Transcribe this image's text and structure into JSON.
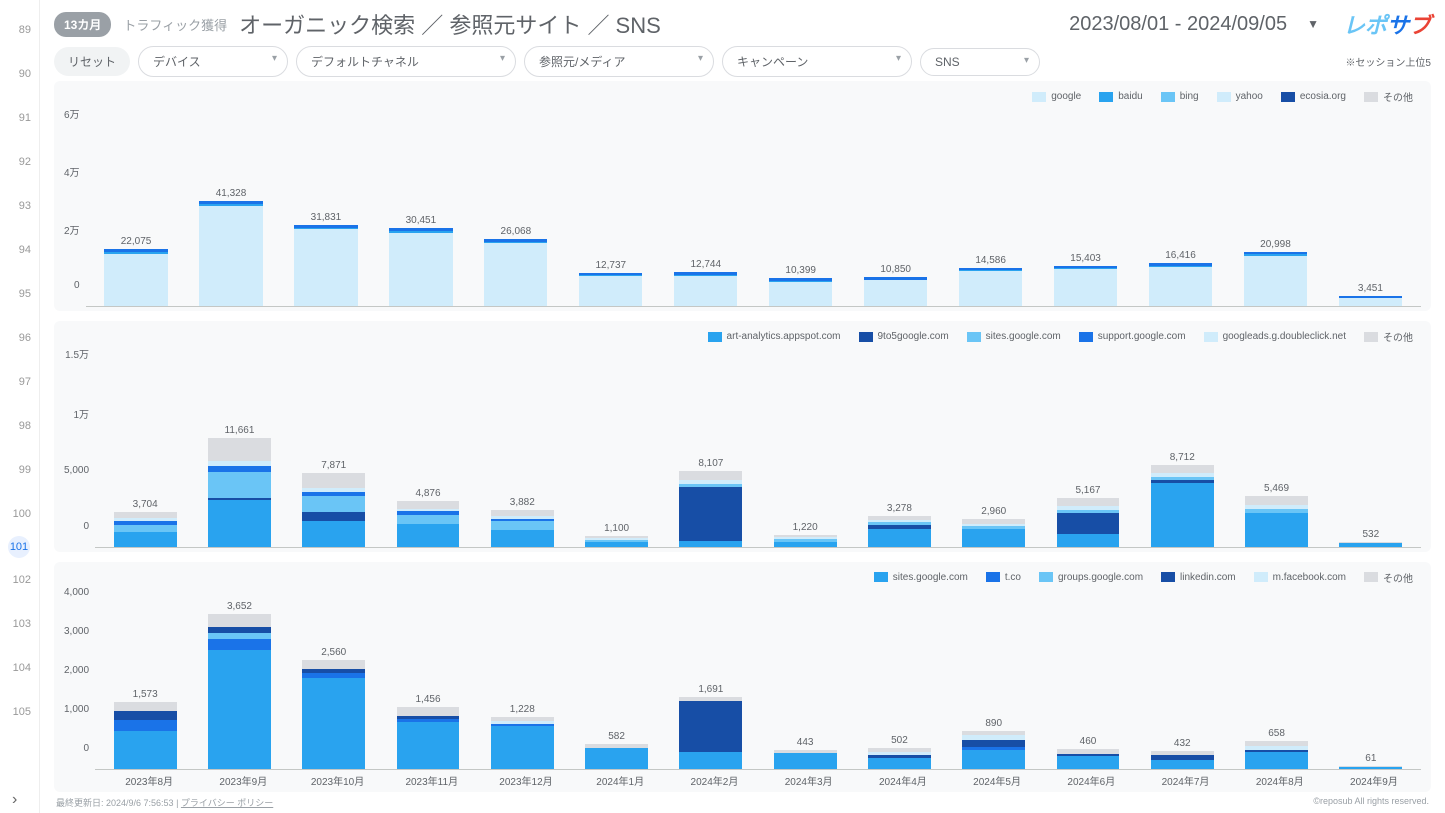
{
  "gutter": {
    "start": 89,
    "end": 105,
    "active": 101
  },
  "header": {
    "badge": "13カ月",
    "breadcrumb": "トラフィック獲得",
    "title": "オーガニック検索 ／ 参照元サイト ／ SNS",
    "date_range": "2023/08/01 - 2024/09/05",
    "logo_parts": [
      "レポ",
      "サ",
      "ブ"
    ]
  },
  "filters": {
    "reset": "リセット",
    "items": [
      "デバイス",
      "デフォルトチャネル",
      "参照元/メディア",
      "キャンペーン",
      "SNS"
    ],
    "note": "※セッション上位5"
  },
  "x_categories": [
    "2023年8月",
    "2023年9月",
    "2023年10月",
    "2023年11月",
    "2023年12月",
    "2024年1月",
    "2024年2月",
    "2024年3月",
    "2024年4月",
    "2024年5月",
    "2024年6月",
    "2024年7月",
    "2024年8月",
    "2024年9月"
  ],
  "colors": {
    "lightest": "#d0ecfb",
    "light": "#6ac5f6",
    "med": "#29a3ef",
    "blue": "#1a73e8",
    "dark": "#174ea6",
    "grey": "#dadce0",
    "topline": "#1a73e8"
  },
  "chart1": {
    "legend": [
      {
        "label": "google",
        "color": "#d0ecfb"
      },
      {
        "label": "baidu",
        "color": "#29a3ef"
      },
      {
        "label": "bing",
        "color": "#6ac5f6"
      },
      {
        "label": "yahoo",
        "color": "#d0ecfb"
      },
      {
        "label": "ecosia.org",
        "color": "#174ea6"
      },
      {
        "label": "その他",
        "color": "#dadce0"
      }
    ],
    "y_ticks": [
      "6万",
      "4万",
      "2万",
      "0"
    ],
    "y_max": 60000,
    "bars": [
      {
        "total": 22075,
        "label": "22,075",
        "segs": [
          {
            "c": "#d0ecfb",
            "v": 21000
          },
          {
            "c": "#29a3ef",
            "v": 700
          },
          {
            "c": "#1a73e8",
            "v": 375
          }
        ]
      },
      {
        "total": 41328,
        "label": "41,328",
        "segs": [
          {
            "c": "#d0ecfb",
            "v": 40000
          },
          {
            "c": "#29a3ef",
            "v": 900
          },
          {
            "c": "#1a73e8",
            "v": 428
          }
        ]
      },
      {
        "total": 31831,
        "label": "31,831",
        "segs": [
          {
            "c": "#d0ecfb",
            "v": 30800
          },
          {
            "c": "#29a3ef",
            "v": 700
          },
          {
            "c": "#1a73e8",
            "v": 331
          }
        ]
      },
      {
        "total": 30451,
        "label": "30,451",
        "segs": [
          {
            "c": "#d0ecfb",
            "v": 29500
          },
          {
            "c": "#29a3ef",
            "v": 651
          },
          {
            "c": "#1a73e8",
            "v": 300
          }
        ]
      },
      {
        "total": 26068,
        "label": "26,068",
        "segs": [
          {
            "c": "#d0ecfb",
            "v": 25200
          },
          {
            "c": "#29a3ef",
            "v": 568
          },
          {
            "c": "#1a73e8",
            "v": 300
          }
        ]
      },
      {
        "total": 12737,
        "label": "12,737",
        "segs": [
          {
            "c": "#d0ecfb",
            "v": 12200
          },
          {
            "c": "#29a3ef",
            "v": 337
          },
          {
            "c": "#1a73e8",
            "v": 200
          }
        ]
      },
      {
        "total": 12744,
        "label": "12,744",
        "segs": [
          {
            "c": "#d0ecfb",
            "v": 12200
          },
          {
            "c": "#29a3ef",
            "v": 344
          },
          {
            "c": "#1a73e8",
            "v": 200
          }
        ]
      },
      {
        "total": 10399,
        "label": "10,399",
        "segs": [
          {
            "c": "#d0ecfb",
            "v": 9900
          },
          {
            "c": "#29a3ef",
            "v": 299
          },
          {
            "c": "#1a73e8",
            "v": 200
          }
        ]
      },
      {
        "total": 10850,
        "label": "10,850",
        "segs": [
          {
            "c": "#d0ecfb",
            "v": 10350
          },
          {
            "c": "#29a3ef",
            "v": 300
          },
          {
            "c": "#1a73e8",
            "v": 200
          }
        ]
      },
      {
        "total": 14586,
        "label": "14,586",
        "segs": [
          {
            "c": "#d0ecfb",
            "v": 13986
          },
          {
            "c": "#29a3ef",
            "v": 400
          },
          {
            "c": "#1a73e8",
            "v": 200
          }
        ]
      },
      {
        "total": 15403,
        "label": "15,403",
        "segs": [
          {
            "c": "#d0ecfb",
            "v": 14803
          },
          {
            "c": "#29a3ef",
            "v": 400
          },
          {
            "c": "#1a73e8",
            "v": 200
          }
        ]
      },
      {
        "total": 16416,
        "label": "16,416",
        "segs": [
          {
            "c": "#d0ecfb",
            "v": 15816
          },
          {
            "c": "#29a3ef",
            "v": 400
          },
          {
            "c": "#1a73e8",
            "v": 200
          }
        ]
      },
      {
        "total": 20998,
        "label": "20,998",
        "segs": [
          {
            "c": "#d0ecfb",
            "v": 20298
          },
          {
            "c": "#29a3ef",
            "v": 500
          },
          {
            "c": "#1a73e8",
            "v": 200
          }
        ]
      },
      {
        "total": 3451,
        "label": "3,451",
        "segs": [
          {
            "c": "#d0ecfb",
            "v": 3251
          },
          {
            "c": "#29a3ef",
            "v": 100
          },
          {
            "c": "#1a73e8",
            "v": 100
          }
        ]
      }
    ]
  },
  "chart2": {
    "legend": [
      {
        "label": "art-analytics.appspot.com",
        "color": "#29a3ef"
      },
      {
        "label": "9to5google.com",
        "color": "#174ea6"
      },
      {
        "label": "sites.google.com",
        "color": "#6ac5f6"
      },
      {
        "label": "support.google.com",
        "color": "#1a73e8"
      },
      {
        "label": "googleads.g.doubleclick.net",
        "color": "#d0ecfb"
      },
      {
        "label": "その他",
        "color": "#dadce0"
      }
    ],
    "y_ticks": [
      "1.5万",
      "1万",
      "5,000",
      "0"
    ],
    "y_max": 15000,
    "bars": [
      {
        "total": 3704,
        "label": "3,704",
        "segs": [
          {
            "c": "#29a3ef",
            "v": 1600
          },
          {
            "c": "#6ac5f6",
            "v": 700
          },
          {
            "c": "#1a73e8",
            "v": 404
          },
          {
            "c": "#d0ecfb",
            "v": 400
          },
          {
            "c": "#dadce0",
            "v": 600
          }
        ]
      },
      {
        "total": 11661,
        "label": "11,661",
        "segs": [
          {
            "c": "#29a3ef",
            "v": 5000
          },
          {
            "c": "#174ea6",
            "v": 200
          },
          {
            "c": "#6ac5f6",
            "v": 2800
          },
          {
            "c": "#1a73e8",
            "v": 661
          },
          {
            "c": "#d0ecfb",
            "v": 500
          },
          {
            "c": "#dadce0",
            "v": 2500
          }
        ]
      },
      {
        "total": 7871,
        "label": "7,871",
        "segs": [
          {
            "c": "#29a3ef",
            "v": 2800
          },
          {
            "c": "#174ea6",
            "v": 900
          },
          {
            "c": "#6ac5f6",
            "v": 1700
          },
          {
            "c": "#1a73e8",
            "v": 471
          },
          {
            "c": "#d0ecfb",
            "v": 400
          },
          {
            "c": "#dadce0",
            "v": 1600
          }
        ]
      },
      {
        "total": 4876,
        "label": "4,876",
        "segs": [
          {
            "c": "#29a3ef",
            "v": 2400
          },
          {
            "c": "#6ac5f6",
            "v": 1000
          },
          {
            "c": "#1a73e8",
            "v": 376
          },
          {
            "c": "#d0ecfb",
            "v": 300
          },
          {
            "c": "#dadce0",
            "v": 800
          }
        ]
      },
      {
        "total": 3882,
        "label": "3,882",
        "segs": [
          {
            "c": "#29a3ef",
            "v": 1800
          },
          {
            "c": "#6ac5f6",
            "v": 900
          },
          {
            "c": "#1a73e8",
            "v": 282
          },
          {
            "c": "#d0ecfb",
            "v": 300
          },
          {
            "c": "#dadce0",
            "v": 600
          }
        ]
      },
      {
        "total": 1100,
        "label": "1,100",
        "segs": [
          {
            "c": "#29a3ef",
            "v": 500
          },
          {
            "c": "#6ac5f6",
            "v": 250
          },
          {
            "c": "#d0ecfb",
            "v": 150
          },
          {
            "c": "#dadce0",
            "v": 200
          }
        ]
      },
      {
        "total": 8107,
        "label": "8,107",
        "segs": [
          {
            "c": "#29a3ef",
            "v": 600
          },
          {
            "c": "#174ea6",
            "v": 5800
          },
          {
            "c": "#6ac5f6",
            "v": 307
          },
          {
            "c": "#d0ecfb",
            "v": 400
          },
          {
            "c": "#dadce0",
            "v": 1000
          }
        ]
      },
      {
        "total": 1220,
        "label": "1,220",
        "segs": [
          {
            "c": "#29a3ef",
            "v": 500
          },
          {
            "c": "#6ac5f6",
            "v": 300
          },
          {
            "c": "#d0ecfb",
            "v": 220
          },
          {
            "c": "#dadce0",
            "v": 200
          }
        ]
      },
      {
        "total": 3278,
        "label": "3,278",
        "segs": [
          {
            "c": "#29a3ef",
            "v": 1900
          },
          {
            "c": "#174ea6",
            "v": 400
          },
          {
            "c": "#6ac5f6",
            "v": 378
          },
          {
            "c": "#d0ecfb",
            "v": 200
          },
          {
            "c": "#dadce0",
            "v": 400
          }
        ]
      },
      {
        "total": 2960,
        "label": "2,960",
        "segs": [
          {
            "c": "#29a3ef",
            "v": 1900
          },
          {
            "c": "#6ac5f6",
            "v": 360
          },
          {
            "c": "#d0ecfb",
            "v": 200
          },
          {
            "c": "#dadce0",
            "v": 500
          }
        ]
      },
      {
        "total": 5167,
        "label": "5,167",
        "segs": [
          {
            "c": "#29a3ef",
            "v": 1400
          },
          {
            "c": "#174ea6",
            "v": 2200
          },
          {
            "c": "#6ac5f6",
            "v": 367
          },
          {
            "c": "#d0ecfb",
            "v": 400
          },
          {
            "c": "#dadce0",
            "v": 800
          }
        ]
      },
      {
        "total": 8712,
        "label": "8,712",
        "segs": [
          {
            "c": "#29a3ef",
            "v": 6800
          },
          {
            "c": "#174ea6",
            "v": 312
          },
          {
            "c": "#6ac5f6",
            "v": 400
          },
          {
            "c": "#d0ecfb",
            "v": 400
          },
          {
            "c": "#dadce0",
            "v": 800
          }
        ]
      },
      {
        "total": 5469,
        "label": "5,469",
        "segs": [
          {
            "c": "#29a3ef",
            "v": 3600
          },
          {
            "c": "#6ac5f6",
            "v": 469
          },
          {
            "c": "#d0ecfb",
            "v": 400
          },
          {
            "c": "#dadce0",
            "v": 1000
          }
        ]
      },
      {
        "total": 532,
        "label": "532",
        "segs": [
          {
            "c": "#29a3ef",
            "v": 350
          },
          {
            "c": "#6ac5f6",
            "v": 82
          },
          {
            "c": "#dadce0",
            "v": 100
          }
        ]
      }
    ]
  },
  "chart3": {
    "legend": [
      {
        "label": "sites.google.com",
        "color": "#29a3ef"
      },
      {
        "label": "t.co",
        "color": "#1a73e8"
      },
      {
        "label": "groups.google.com",
        "color": "#6ac5f6"
      },
      {
        "label": "linkedin.com",
        "color": "#174ea6"
      },
      {
        "label": "m.facebook.com",
        "color": "#d0ecfb"
      },
      {
        "label": "その他",
        "color": "#dadce0"
      }
    ],
    "y_ticks": [
      "4,000",
      "3,000",
      "2,000",
      "1,000",
      "0"
    ],
    "y_max": 4000,
    "bars": [
      {
        "total": 1573,
        "label": "1,573",
        "segs": [
          {
            "c": "#29a3ef",
            "v": 900
          },
          {
            "c": "#1a73e8",
            "v": 250
          },
          {
            "c": "#174ea6",
            "v": 223
          },
          {
            "c": "#dadce0",
            "v": 200
          }
        ]
      },
      {
        "total": 3652,
        "label": "3,652",
        "segs": [
          {
            "c": "#29a3ef",
            "v": 2800
          },
          {
            "c": "#1a73e8",
            "v": 252
          },
          {
            "c": "#6ac5f6",
            "v": 150
          },
          {
            "c": "#174ea6",
            "v": 150
          },
          {
            "c": "#dadce0",
            "v": 300
          }
        ]
      },
      {
        "total": 2560,
        "label": "2,560",
        "segs": [
          {
            "c": "#29a3ef",
            "v": 2150
          },
          {
            "c": "#1a73e8",
            "v": 110
          },
          {
            "c": "#174ea6",
            "v": 100
          },
          {
            "c": "#dadce0",
            "v": 200
          }
        ]
      },
      {
        "total": 1456,
        "label": "1,456",
        "segs": [
          {
            "c": "#29a3ef",
            "v": 1100
          },
          {
            "c": "#1a73e8",
            "v": 80
          },
          {
            "c": "#174ea6",
            "v": 76
          },
          {
            "c": "#dadce0",
            "v": 200
          }
        ]
      },
      {
        "total": 1228,
        "label": "1,228",
        "segs": [
          {
            "c": "#29a3ef",
            "v": 1000
          },
          {
            "c": "#1a73e8",
            "v": 50
          },
          {
            "c": "#d0ecfb",
            "v": 78
          },
          {
            "c": "#dadce0",
            "v": 100
          }
        ]
      },
      {
        "total": 582,
        "label": "582",
        "segs": [
          {
            "c": "#29a3ef",
            "v": 500
          },
          {
            "c": "#dadce0",
            "v": 82
          }
        ]
      },
      {
        "total": 1691,
        "label": "1,691",
        "segs": [
          {
            "c": "#29a3ef",
            "v": 400
          },
          {
            "c": "#174ea6",
            "v": 1191
          },
          {
            "c": "#dadce0",
            "v": 100
          }
        ]
      },
      {
        "total": 443,
        "label": "443",
        "segs": [
          {
            "c": "#29a3ef",
            "v": 380
          },
          {
            "c": "#dadce0",
            "v": 63
          }
        ]
      },
      {
        "total": 502,
        "label": "502",
        "segs": [
          {
            "c": "#29a3ef",
            "v": 260
          },
          {
            "c": "#174ea6",
            "v": 60
          },
          {
            "c": "#d0ecfb",
            "v": 82
          },
          {
            "c": "#dadce0",
            "v": 100
          }
        ]
      },
      {
        "total": 890,
        "label": "890",
        "segs": [
          {
            "c": "#29a3ef",
            "v": 450
          },
          {
            "c": "#1a73e8",
            "v": 60
          },
          {
            "c": "#174ea6",
            "v": 180
          },
          {
            "c": "#d0ecfb",
            "v": 100
          },
          {
            "c": "#dadce0",
            "v": 100
          }
        ]
      },
      {
        "total": 460,
        "label": "460",
        "segs": [
          {
            "c": "#29a3ef",
            "v": 300
          },
          {
            "c": "#174ea6",
            "v": 60
          },
          {
            "c": "#dadce0",
            "v": 100
          }
        ]
      },
      {
        "total": 432,
        "label": "432",
        "segs": [
          {
            "c": "#29a3ef",
            "v": 220
          },
          {
            "c": "#174ea6",
            "v": 112
          },
          {
            "c": "#dadce0",
            "v": 100
          }
        ]
      },
      {
        "total": 658,
        "label": "658",
        "segs": [
          {
            "c": "#29a3ef",
            "v": 410
          },
          {
            "c": "#174ea6",
            "v": 48
          },
          {
            "c": "#d0ecfb",
            "v": 80
          },
          {
            "c": "#dadce0",
            "v": 120
          }
        ]
      },
      {
        "total": 61,
        "label": "61",
        "segs": [
          {
            "c": "#29a3ef",
            "v": 40
          },
          {
            "c": "#dadce0",
            "v": 21
          }
        ]
      }
    ]
  },
  "footer": {
    "updated": "最終更新日: 2024/9/6 7:56:53",
    "privacy": "プライバシー ポリシー",
    "copyright": "©reposub All rights reserved."
  }
}
